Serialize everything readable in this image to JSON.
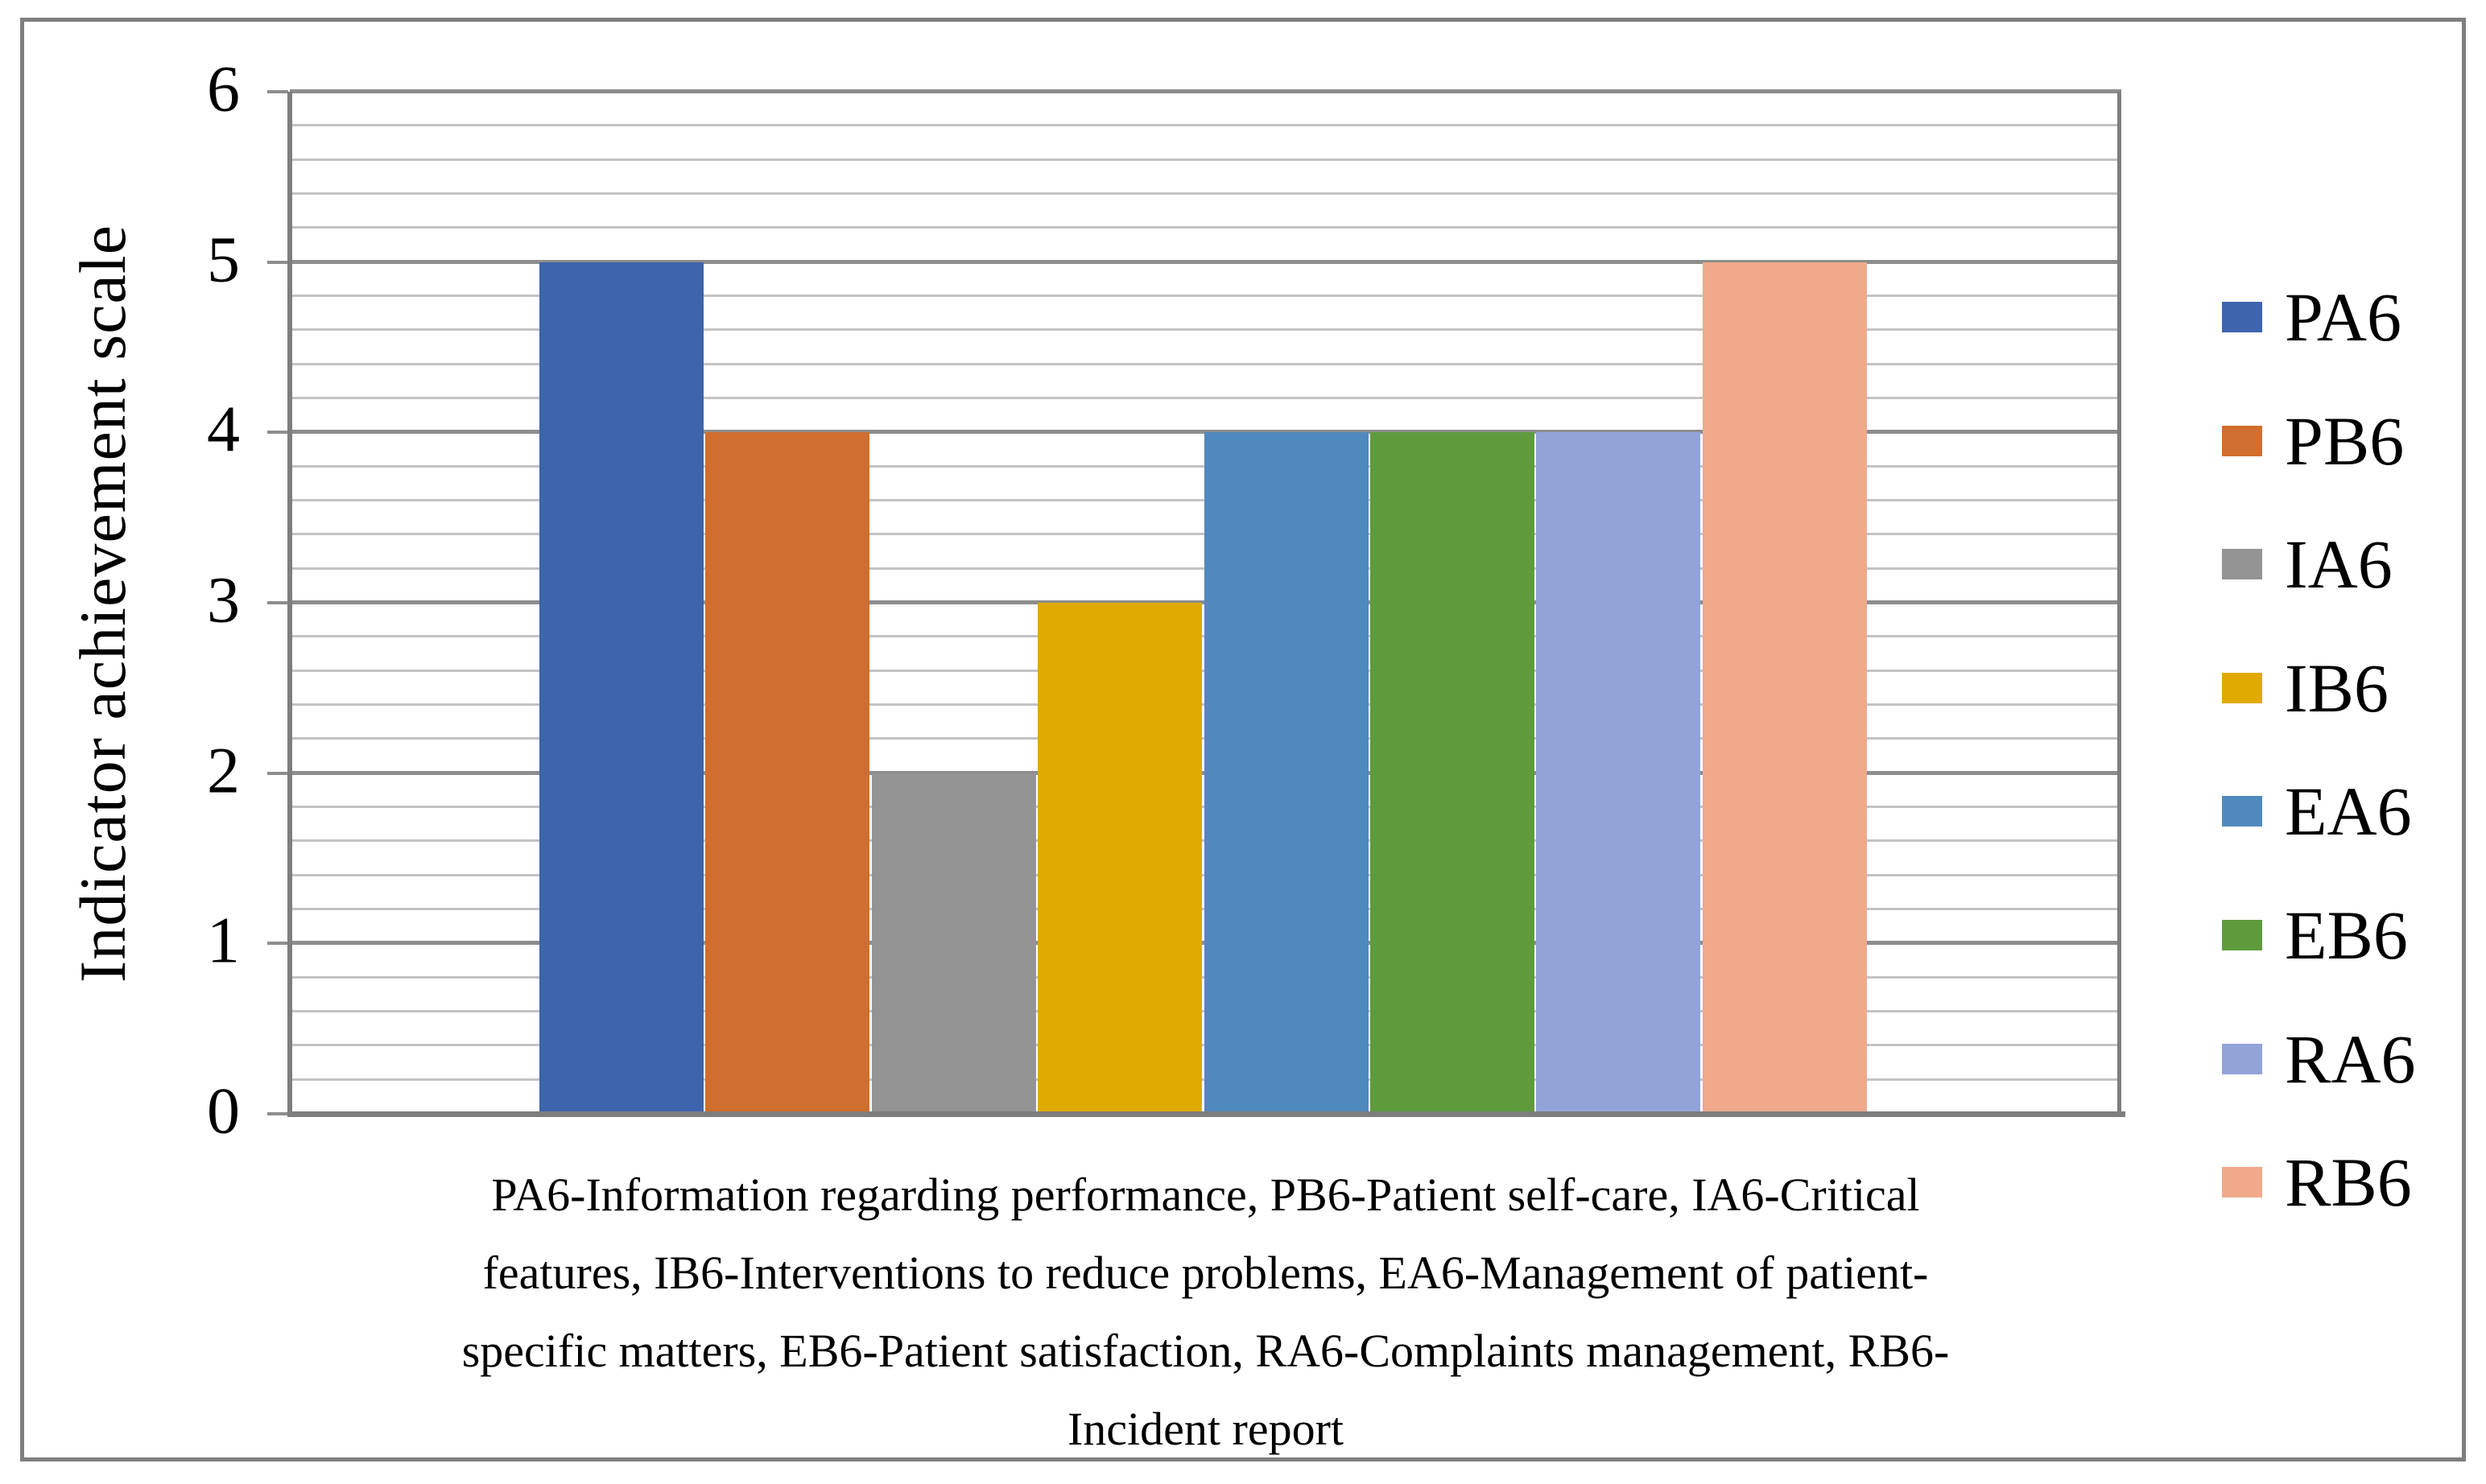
{
  "palette": {
    "background": "#FFFFFF",
    "frame_border": "#7E7E7E",
    "axis_line": "#7E7E7E",
    "grid_major": "#8D8D8D",
    "grid_minor": "#C3C3C3",
    "text": "#000000"
  },
  "chart_data": {
    "type": "bar",
    "title": "",
    "categories": [
      "PA6",
      "PB6",
      "IA6",
      "IB6",
      "EA6",
      "EB6",
      "RA6",
      "RB6"
    ],
    "values": [
      5,
      4,
      2,
      3,
      4,
      4,
      4,
      5
    ],
    "bar_colors": [
      "#3D64AC",
      "#CF6E2E",
      "#949494",
      "#E0AA00",
      "#5089BD",
      "#5F9B3D",
      "#92A3D8",
      "#F0A98A"
    ],
    "ylabel": "Indicator achievement scale",
    "ylim": [
      0,
      6
    ],
    "y_major_interval": 1,
    "y_minor_interval": 0.2,
    "y_tick_labels": [
      "0",
      "1",
      "2",
      "3",
      "4",
      "5",
      "6"
    ],
    "grid": "horizontal major+minor",
    "legend_position": "right",
    "legend": [
      {
        "label": "PA6",
        "color": "#3D64AC"
      },
      {
        "label": "PB6",
        "color": "#CF6E2E"
      },
      {
        "label": "IA6",
        "color": "#949494"
      },
      {
        "label": "IB6",
        "color": "#E0AA00"
      },
      {
        "label": "EA6",
        "color": "#5089BD"
      },
      {
        "label": "EB6",
        "color": "#5F9B3D"
      },
      {
        "label": "RA6",
        "color": "#92A3D8"
      },
      {
        "label": "RB6",
        "color": "#F0A98A"
      }
    ],
    "xlabel": "PA6-Information regarding performance, PB6-Patient self-care, IA6-Critical features, IB6-Interventions to reduce problems, EA6-Management of patient-specific matters, EB6-Patient satisfaction, RA6-Complaints management, RB6-Incident report",
    "xlabel_lines": [
      "PA6-Information regarding performance, PB6-Patient self-care, IA6-Critical",
      "features, IB6-Interventions to reduce problems, EA6-Management of patient-",
      "specific matters, EB6-Patient satisfaction, RA6-Complaints management, RB6-",
      "Incident report"
    ]
  }
}
